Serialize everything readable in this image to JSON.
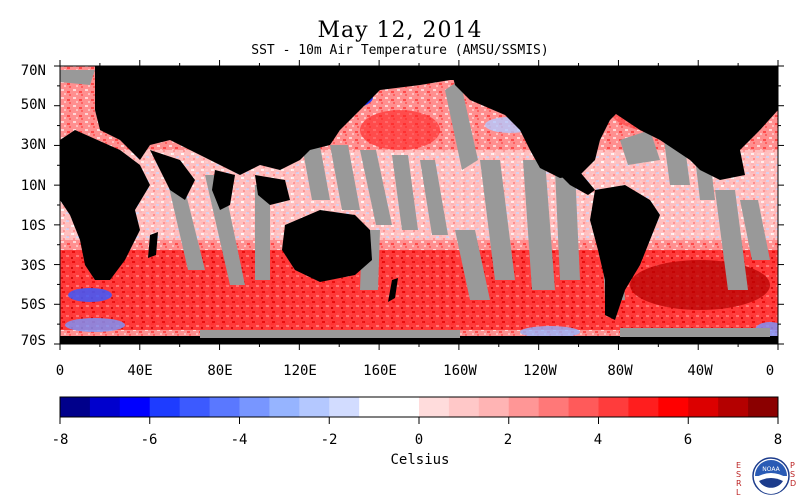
{
  "title": "May 12, 2014",
  "subtitle": "SST - 10m Air Temperature (AMSU/SSMIS)",
  "map": {
    "lat_labels": [
      "70N",
      "50N",
      "30N",
      "10N",
      "10S",
      "30S",
      "50S",
      "70S"
    ],
    "lon_labels": [
      "0",
      "40E",
      "80E",
      "120E",
      "160E",
      "160W",
      "120W",
      "80W",
      "40W",
      "0"
    ],
    "land_color": "#000000",
    "missing_color": "#999999"
  },
  "colorbar": {
    "label": "Celsius",
    "tick_labels": [
      "-8",
      "-6",
      "-4",
      "-2",
      "0",
      "2",
      "4",
      "6",
      "8"
    ],
    "range": [
      -8,
      8
    ],
    "colors": [
      "#00008b",
      "#0000cd",
      "#0000ff",
      "#1e3cff",
      "#3c5aff",
      "#5a78ff",
      "#7896ff",
      "#96b4ff",
      "#b4c8ff",
      "#d2dcff",
      "#ffffff",
      "#ffffff",
      "#ffdcdc",
      "#ffc8c8",
      "#ffb4b4",
      "#ff9696",
      "#ff7878",
      "#ff5a5a",
      "#ff3c3c",
      "#ff1e1e",
      "#ff0000",
      "#dc0000",
      "#b40000",
      "#8b0000"
    ]
  },
  "logos": {
    "left_vertical": "ESRL",
    "right_vertical": "PSD",
    "noaa": "NOAA"
  }
}
